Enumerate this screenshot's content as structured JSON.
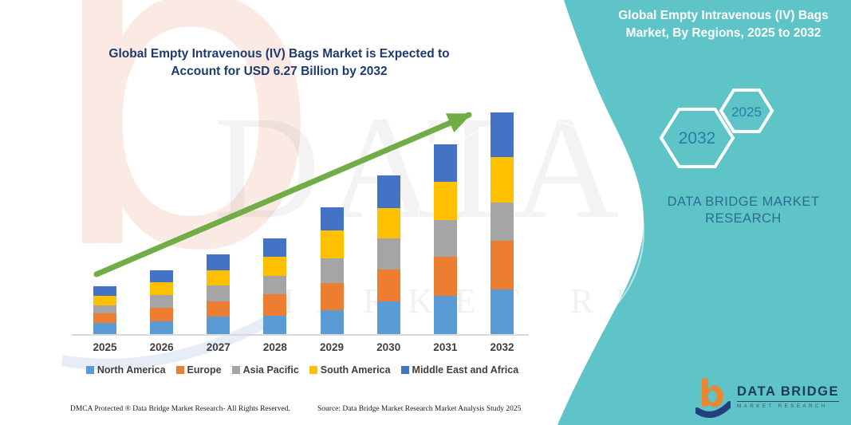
{
  "panel": {
    "title_line1": "Global Empty Intravenous (IV) Bags",
    "title_line2": "Market, By Regions, 2025 to 2032",
    "bg_color": "#5fc4c8",
    "hexagons": [
      {
        "label": "2032"
      },
      {
        "label": "2025"
      }
    ],
    "brand_line1": "DATA BRIDGE MARKET",
    "brand_line2": "RESEARCH"
  },
  "chart": {
    "title_line1": "Global Empty Intravenous (IV) Bags Market is Expected to",
    "title_line2": "Account for USD 6.27 Billion by 2032"
  },
  "chart_data": {
    "type": "bar",
    "stacked": true,
    "title": "Global Empty Intravenous (IV) Bags Market is Expected to Account for USD 6.27 Billion by 2032",
    "unit": "USD billion",
    "categories": [
      "2025",
      "2026",
      "2027",
      "2028",
      "2029",
      "2030",
      "2031",
      "2032"
    ],
    "series": [
      {
        "name": "North America",
        "color": "#5b9bd5",
        "values": [
          0.32,
          0.37,
          0.49,
          0.53,
          0.68,
          0.93,
          1.09,
          1.26
        ]
      },
      {
        "name": "Europe",
        "color": "#ed7d31",
        "values": [
          0.27,
          0.38,
          0.44,
          0.6,
          0.77,
          0.9,
          1.09,
          1.38
        ]
      },
      {
        "name": "Asia Pacific",
        "color": "#a5a5a5",
        "values": [
          0.23,
          0.36,
          0.44,
          0.51,
          0.7,
          0.88,
          1.05,
          1.09
        ]
      },
      {
        "name": "South America",
        "color": "#ffc000",
        "values": [
          0.27,
          0.35,
          0.43,
          0.54,
          0.79,
          0.86,
          1.08,
          1.29
        ]
      },
      {
        "name": "Middle East and Africa",
        "color": "#4472c4",
        "values": [
          0.27,
          0.36,
          0.46,
          0.54,
          0.64,
          0.93,
          1.07,
          1.25
        ]
      }
    ],
    "totals": [
      1.36,
      1.82,
      2.26,
      2.72,
      3.58,
      4.5,
      5.38,
      6.27
    ],
    "ylim": [
      0,
      6.6
    ],
    "gridlines": false,
    "legend_position": "bottom",
    "annotations": [
      "Upward green trend arrow from 2025 bar to 2032 bar"
    ],
    "accent_colors": {
      "trend_arrow": "#70ad47",
      "axis_line": "#d9d9d9"
    }
  },
  "logo": {
    "mark_glyph": "b",
    "name": "DATA BRIDGE",
    "subtitle": "MARKET RESEARCH"
  },
  "footer": {
    "left": "DMCA Protected ® Data Bridge Market Research-  All Rights Reserved.",
    "source": "Source: Data Bridge Market Research  Market Analysis Study 2025"
  },
  "watermarks": {
    "b_glyph": "b",
    "big_text": "DATA BRIDGE",
    "spaced_text": "MARKET RESEARCH"
  }
}
